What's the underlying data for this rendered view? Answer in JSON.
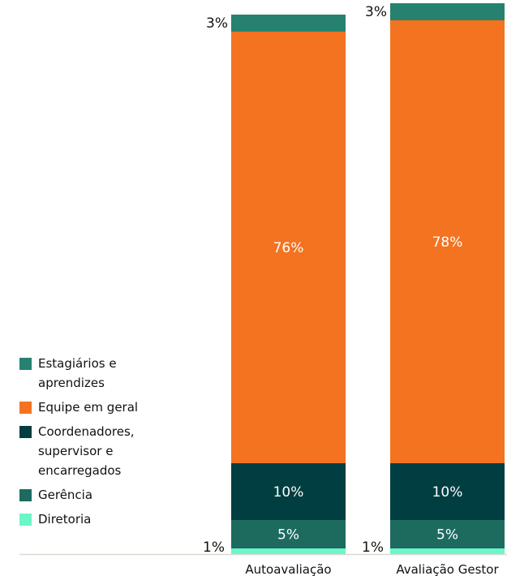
{
  "chart_data": {
    "type": "bar",
    "stacked": true,
    "percent": true,
    "categories": [
      "Autoavaliação",
      "Avaliação Gestor"
    ],
    "series": [
      {
        "name": "Diretoria",
        "color": "#6cf5c8",
        "values": [
          1,
          1
        ],
        "labels": [
          "1%",
          "1%"
        ]
      },
      {
        "name": "Gerência",
        "color": "#1d6b5f",
        "values": [
          5,
          5
        ],
        "labels": [
          "5%",
          "5%"
        ]
      },
      {
        "name": "Coordenadores, supervisor e encarregados",
        "color": "#013e41",
        "values": [
          10,
          10
        ],
        "labels": [
          "10%",
          "10%"
        ]
      },
      {
        "name": "Equipe em geral",
        "color": "#f37321",
        "values": [
          76,
          78
        ],
        "labels": [
          "76%",
          "78%"
        ]
      },
      {
        "name": "Estagiários e aprendizes",
        "color": "#26826f",
        "values": [
          3,
          3
        ],
        "labels": [
          "3%",
          "3%"
        ]
      }
    ],
    "legend_position": "left",
    "grid": false
  },
  "legend": [
    {
      "label": "Estagiários e\naprendizes",
      "color": "#26826f"
    },
    {
      "label": "Equipe em geral",
      "color": "#f37321"
    },
    {
      "label": "Coordenadores,\nsupervisor e\nencarregados",
      "color": "#013e41"
    },
    {
      "label": "Gerência",
      "color": "#1d6b5f"
    },
    {
      "label": "Diretoria",
      "color": "#6cf5c8"
    }
  ]
}
